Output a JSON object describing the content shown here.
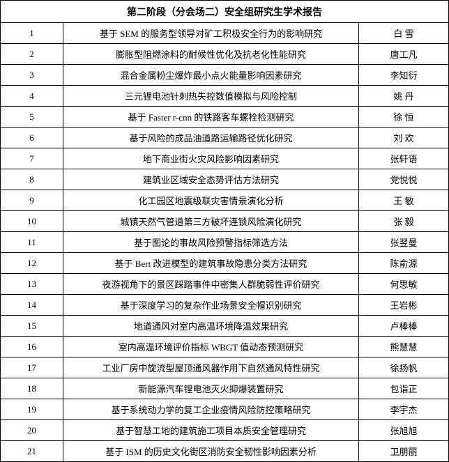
{
  "table": {
    "title": "第二阶段（分会场二）安全组研究生学术报告",
    "rows": [
      [
        "1",
        "基于 SEM 的服务型领导对矿工积极安全行为的影响研究",
        "白 雪"
      ],
      [
        "2",
        "膨胀型阻燃涂料的耐候性优化及抗老化性能研究",
        "唐工凡"
      ],
      [
        "3",
        "混合金属粉尘爆炸最小点火能量影响因素研究",
        "李知衍"
      ],
      [
        "4",
        "三元锂电池针刺热失控数值模拟与风险控制",
        "姚 丹"
      ],
      [
        "5",
        "基于 Faster r-cnn 的铁路客车螺栓检测研究",
        "徐 恒"
      ],
      [
        "6",
        "基于风险的成品油道路运输路径优化研究",
        "刘 欢"
      ],
      [
        "7",
        "地下商业街火灾风险影响因素研究",
        "张轩语"
      ],
      [
        "8",
        "建筑业区域安全态势评估方法研究",
        "党悦悦"
      ],
      [
        "9",
        "化工园区地震级联灾害情景演化分析",
        "王 敏"
      ],
      [
        "10",
        "城镇天然气管道第三方破坏连锁风险演化研究",
        "张 毅"
      ],
      [
        "11",
        "基于图论的事故风险预警指标筛选方法",
        "张翌曼"
      ],
      [
        "12",
        "基于 Bert 改进模型的建筑事故隐患分类方法研究",
        "陈俞源"
      ],
      [
        "13",
        "夜游视角下的景区踩踏事件中密集人群脆弱性评价研究",
        "何思敏"
      ],
      [
        "14",
        "基于深度学习的复杂作业场景安全帽识别研究",
        "王岩彬"
      ],
      [
        "15",
        "地道通风对室内高温环境降温效果研究",
        "卢棒棒"
      ],
      [
        "16",
        "室内高温环境评价指标 WBGT 值动态预测研究",
        "熊慧慧"
      ],
      [
        "17",
        "工业厂房中旋流型屋顶通风器作用下自然通风特性研究",
        "徐扬帆"
      ],
      [
        "18",
        "新能源汽车锂电池灭火抑爆装置研究",
        "包诣正"
      ],
      [
        "19",
        "基于系统动力学的复工企业疫情风险防控策略研究",
        "李宇杰"
      ],
      [
        "20",
        "基于智慧工地的建筑施工项目本质安全管理研究",
        "张旭旭"
      ],
      [
        "21",
        "基于 ISM 的历史文化街区消防安全韧性影响因素分析",
        "卫朋丽"
      ]
    ]
  }
}
